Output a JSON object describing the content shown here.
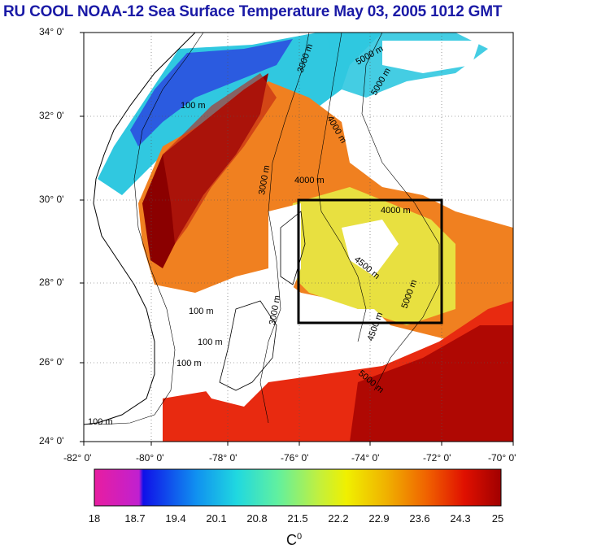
{
  "title": "RU COOL  NOAA-12 Sea Surface Temperature May 03, 2005 1012 GMT",
  "lat_labels": [
    "34° 0'",
    "32° 0'",
    "30° 0'",
    "28° 0'",
    "26° 0'",
    "24° 0'"
  ],
  "lon_labels": [
    "-82° 0'",
    "-80° 0'",
    "-78° 0'",
    "-76° 0'",
    "-74° 0'",
    "-72° 0'",
    "-70° 0'"
  ],
  "contour_labels": [
    "100 m",
    "3000 m",
    "4000 m",
    "5000 m",
    "4500 m"
  ],
  "colorbar": {
    "ticks": [
      "18",
      "18.7",
      "19.4",
      "20.1",
      "20.8",
      "21.5",
      "22.2",
      "22.9",
      "23.6",
      "24.3",
      "25"
    ],
    "unit": "C",
    "unit_sup": "0",
    "colors": [
      "#e81ea0",
      "#1010e8",
      "#1090f0",
      "#20d8e0",
      "#60f0a0",
      "#c0f040",
      "#f0f000",
      "#f0b000",
      "#f06000",
      "#e01000",
      "#a00000"
    ]
  },
  "map_colors": {
    "land": "#ffffff",
    "cloud": "#ffffff",
    "gulfstream": "#8b0000",
    "warm": "#e82a10",
    "orange": "#f08020",
    "yellow": "#e8e040",
    "cyan": "#30c8e0",
    "blue": "#2a40e0",
    "box": "#000000"
  }
}
